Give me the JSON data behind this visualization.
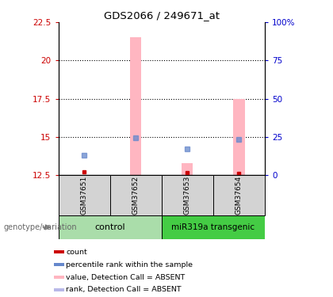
{
  "title": "GDS2066 / 249671_at",
  "samples": [
    "GSM37651",
    "GSM37652",
    "GSM37653",
    "GSM37654"
  ],
  "ylim_left": [
    12.5,
    22.5
  ],
  "ylim_right": [
    0,
    100
  ],
  "yticks_left": [
    12.5,
    15.0,
    17.5,
    20.0,
    22.5
  ],
  "ytick_labels_left": [
    "12.5",
    "15",
    "17.5",
    "20",
    "22.5"
  ],
  "yticks_right": [
    0,
    25,
    50,
    75,
    100
  ],
  "ytick_labels_right": [
    "0",
    "25",
    "50",
    "75",
    "100%"
  ],
  "bar_values": [
    null,
    21.5,
    13.3,
    17.5
  ],
  "bar_color": "#ffb6c1",
  "count_values": [
    12.7,
    null,
    12.65,
    12.6
  ],
  "count_color": "#cc0000",
  "rank_values": [
    13.8,
    14.95,
    14.2,
    14.85
  ],
  "rank_color": "#6688cc",
  "x_positions": [
    1,
    2,
    3,
    4
  ],
  "label_color_left": "#cc0000",
  "label_color_right": "#0000cc",
  "ctrl_color": "#aaddaa",
  "mir_color": "#44cc44",
  "sample_box_color": "#d3d3d3",
  "legend_colors": [
    "#cc0000",
    "#6688cc",
    "#ffb6c1",
    "#b8b8e8"
  ],
  "legend_texts": [
    "count",
    "percentile rank within the sample",
    "value, Detection Call = ABSENT",
    "rank, Detection Call = ABSENT"
  ]
}
